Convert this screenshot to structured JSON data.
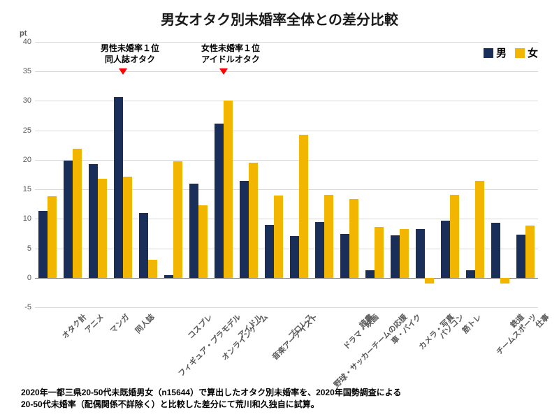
{
  "title": {
    "text": "男女オタク別未婚率全体との差分比較",
    "fontsize": 20,
    "color": "#1a1a1a"
  },
  "chart": {
    "type": "bar",
    "ylim": [
      -5,
      40
    ],
    "ytick_step": 5,
    "pt_label": "pt",
    "grid_color": "#d9d9d9",
    "zero_color": "#808080",
    "background_color": "#ffffff",
    "bar_colors": {
      "male": "#1a2e5a",
      "female": "#f2b600"
    },
    "categories": [
      "オタク計",
      "アニメ",
      "マンガ",
      "同人誌",
      "フィギュア・プラモデル",
      "コスプレ",
      "オンラインゲーム",
      "アイドル",
      "音楽アーテイスト",
      "プロレス",
      "野球・サッカーチームの応援",
      "ドラマ・映画",
      "読書",
      "車・バイク",
      "カメラ・写真",
      "パソコン",
      "筋トレ",
      "チームスポーツ",
      "鉄道",
      "仕事"
    ],
    "series": [
      {
        "name": "男",
        "color": "#1a2e5a",
        "values": [
          11.3,
          19.9,
          19.3,
          30.7,
          11.0,
          0.4,
          16.0,
          26.1,
          16.4,
          9.0,
          7.1,
          9.4,
          7.4,
          1.3,
          7.2,
          8.3,
          9.7,
          1.3,
          9.3,
          7.3
        ]
      },
      {
        "name": "女",
        "color": "#f2b600",
        "values": [
          13.8,
          21.9,
          16.8,
          17.2,
          3.0,
          19.7,
          12.3,
          30.0,
          19.5,
          14.0,
          24.2,
          14.1,
          13.4,
          8.6,
          8.3,
          -1.0,
          14.1,
          16.4,
          -1.0,
          8.8
        ]
      }
    ],
    "bar_group_width": 0.72,
    "label_fontsize": 11,
    "label_color": "#595959"
  },
  "legend": {
    "items": [
      {
        "label": "男",
        "color": "#1a2e5a"
      },
      {
        "label": "女",
        "color": "#f2b600"
      }
    ],
    "fontsize": 15
  },
  "annotations": [
    {
      "line1": "男性未婚率１位",
      "line2": "同人誌オタク",
      "category_index": 3
    },
    {
      "line1": "女性未婚率１位",
      "line2": "アイドルオタク",
      "category_index": 7
    }
  ],
  "footnote": {
    "line1": "2020年一都三県20-50代未既婚男女（n15644）で算出したオタク別未婚率を、2020年国勢調査による",
    "line2": "20-50代未婚率（配偶関係不詳除く）と比較した差分にて荒川和久独自に試算。"
  }
}
